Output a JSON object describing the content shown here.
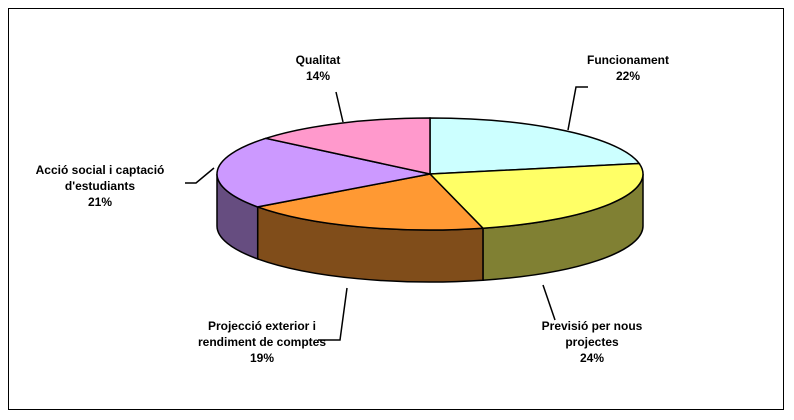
{
  "chart_data": {
    "type": "pie3d",
    "categories": [
      "Funcionament",
      "Previsió per nous projectes",
      "Projecció exterior i rendiment de comptes",
      "Acció social i captació d'estudiants",
      "Qualitat"
    ],
    "values": [
      22,
      24,
      19,
      21,
      14
    ],
    "value_labels": [
      "22%",
      "24%",
      "19%",
      "21%",
      "14%"
    ],
    "colors": [
      "#ccffff",
      "#ffff66",
      "#ff9933",
      "#cc99ff",
      "#ff99cc"
    ]
  }
}
